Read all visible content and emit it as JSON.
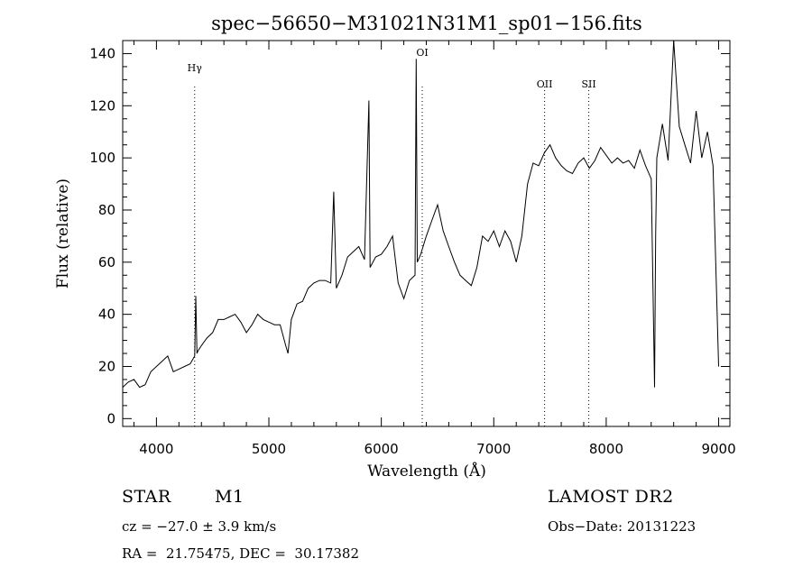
{
  "chart_data": {
    "type": "line",
    "title": "spec−56650−M31021N31M1_sp01−156.fits",
    "xlabel": "Wavelength (Å)",
    "ylabel": "Flux (relative)",
    "xlim": [
      3700,
      9100
    ],
    "ylim": [
      -3,
      145
    ],
    "xticks": [
      4000,
      5000,
      6000,
      7000,
      8000,
      9000
    ],
    "yticks": [
      0,
      20,
      40,
      60,
      80,
      100,
      120,
      140
    ],
    "grid": false,
    "line_markers": [
      {
        "label": "Hγ",
        "x": 4340
      },
      {
        "label": "OI",
        "x": 6364
      },
      {
        "label": "OII",
        "x": 7452
      },
      {
        "label": "SII",
        "x": 7845
      }
    ],
    "spectrum": {
      "x": [
        3700,
        3750,
        3800,
        3850,
        3900,
        3950,
        4000,
        4050,
        4100,
        4150,
        4200,
        4250,
        4300,
        4340,
        4350,
        4360,
        4370,
        4400,
        4450,
        4500,
        4550,
        4600,
        4650,
        4700,
        4750,
        4800,
        4850,
        4900,
        4950,
        5000,
        5050,
        5100,
        5150,
        5170,
        5200,
        5250,
        5300,
        5350,
        5400,
        5450,
        5500,
        5550,
        5577,
        5600,
        5650,
        5700,
        5750,
        5800,
        5850,
        5890,
        5900,
        5950,
        6000,
        6050,
        6100,
        6150,
        6200,
        6250,
        6300,
        6310,
        6320,
        6350,
        6400,
        6450,
        6500,
        6550,
        6600,
        6650,
        6700,
        6750,
        6800,
        6850,
        6900,
        6950,
        7000,
        7050,
        7100,
        7150,
        7200,
        7250,
        7300,
        7350,
        7400,
        7450,
        7500,
        7550,
        7600,
        7650,
        7700,
        7750,
        7800,
        7850,
        7900,
        7950,
        8000,
        8050,
        8100,
        8150,
        8200,
        8250,
        8300,
        8350,
        8400,
        8430,
        8440,
        8450,
        8500,
        8550,
        8600,
        8650,
        8700,
        8750,
        8800,
        8850,
        8900,
        8950,
        9000
      ],
      "y": [
        12,
        14,
        15,
        12,
        13,
        18,
        20,
        22,
        24,
        18,
        19,
        20,
        21,
        24,
        47,
        25,
        26,
        28,
        31,
        33,
        38,
        38,
        39,
        40,
        37,
        33,
        36,
        40,
        38,
        37,
        36,
        36,
        28,
        25,
        38,
        44,
        45,
        50,
        52,
        53,
        53,
        52,
        87,
        50,
        55,
        62,
        64,
        66,
        61,
        122,
        58,
        62,
        63,
        66,
        70,
        52,
        46,
        53,
        55,
        138,
        60,
        63,
        70,
        76,
        82,
        72,
        66,
        60,
        55,
        53,
        51,
        58,
        70,
        68,
        72,
        66,
        72,
        68,
        60,
        70,
        90,
        98,
        97,
        102,
        105,
        100,
        97,
        95,
        94,
        98,
        100,
        96,
        99,
        104,
        101,
        98,
        100,
        98,
        99,
        96,
        103,
        97,
        92,
        12,
        70,
        100,
        113,
        99,
        145,
        112,
        105,
        98,
        118,
        100,
        110,
        97,
        20
      ]
    }
  },
  "footer": {
    "object_class": "STAR",
    "subclass": "M1",
    "survey": "LAMOST DR2",
    "cz": "cz = −27.0 ± 3.9 km/s",
    "obs_date": "Obs−Date: 20131223",
    "coords": "RA =  21.75475, DEC =  30.17382"
  }
}
